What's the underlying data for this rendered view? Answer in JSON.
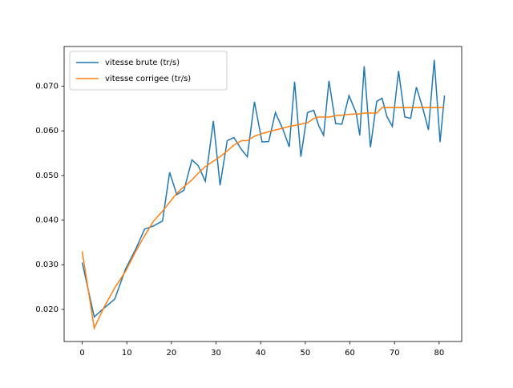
{
  "chart_data": {
    "type": "line",
    "x": [
      0,
      2.7,
      4.9,
      7.3,
      9.7,
      12,
      14,
      16,
      18,
      19.6,
      21.2,
      22.8,
      24.6,
      26,
      27.6,
      29.4,
      30.9,
      32.5,
      34,
      35.7,
      37,
      38.6,
      40.3,
      41.8,
      43.3,
      45,
      46.4,
      47.6,
      49,
      50.5,
      51.9,
      53,
      54.1,
      55.3,
      56.8,
      58.2,
      59.8,
      61.4,
      62.2,
      63.2,
      64.6,
      66,
      67.2,
      68.3,
      69.5,
      70.9,
      72.3,
      73.6,
      74.9,
      76.4,
      77.6,
      78.9,
      80.2,
      81.2
    ],
    "series": [
      {
        "name": "vitesse brute (tr/s)",
        "color": "#1f77b4",
        "values": [
          0.0305,
          0.0183,
          0.0203,
          0.0223,
          0.029,
          0.0335,
          0.038,
          0.0387,
          0.0398,
          0.0507,
          0.0457,
          0.0467,
          0.0535,
          0.0522,
          0.0487,
          0.0622,
          0.0478,
          0.0578,
          0.0585,
          0.0558,
          0.0542,
          0.0665,
          0.0575,
          0.0576,
          0.0641,
          0.0603,
          0.0564,
          0.071,
          0.0542,
          0.0641,
          0.0646,
          0.0612,
          0.059,
          0.0712,
          0.0616,
          0.0615,
          0.0679,
          0.064,
          0.059,
          0.0745,
          0.0563,
          0.0666,
          0.0673,
          0.0632,
          0.061,
          0.0734,
          0.0631,
          0.0628,
          0.0698,
          0.0648,
          0.0602,
          0.0759,
          0.0575,
          0.0679
        ]
      },
      {
        "name": "vitesse corrigee (tr/s)",
        "color": "#ff7f0e",
        "values": [
          0.033,
          0.0158,
          0.0205,
          0.0248,
          0.0285,
          0.033,
          0.0365,
          0.0398,
          0.042,
          0.044,
          0.046,
          0.0475,
          0.049,
          0.0505,
          0.052,
          0.0532,
          0.0542,
          0.0555,
          0.0568,
          0.0578,
          0.0578,
          0.0588,
          0.0594,
          0.0598,
          0.0602,
          0.0606,
          0.061,
          0.0612,
          0.0615,
          0.0618,
          0.0628,
          0.0631,
          0.0631,
          0.0631,
          0.0634,
          0.0635,
          0.0637,
          0.0638,
          0.0638,
          0.064,
          0.064,
          0.064,
          0.0652,
          0.0652,
          0.0652,
          0.0652,
          0.0652,
          0.0652,
          0.0652,
          0.0652,
          0.0652,
          0.0652,
          0.0652,
          0.0652
        ]
      }
    ],
    "xlim": [
      -4.05,
      85.05
    ],
    "xticks": [
      0,
      10,
      20,
      30,
      40,
      50,
      60,
      70,
      80
    ],
    "ylim": [
      0.0128,
      0.0789
    ],
    "yticks": [
      {
        "value": 0.02,
        "label": "0.020"
      },
      {
        "value": 0.03,
        "label": "0.030"
      },
      {
        "value": 0.04,
        "label": "0.040"
      },
      {
        "value": 0.05,
        "label": "0.050"
      },
      {
        "value": 0.06,
        "label": "0.060"
      },
      {
        "value": 0.07,
        "label": "0.070"
      }
    ],
    "grid": false,
    "legend": "upper left"
  }
}
